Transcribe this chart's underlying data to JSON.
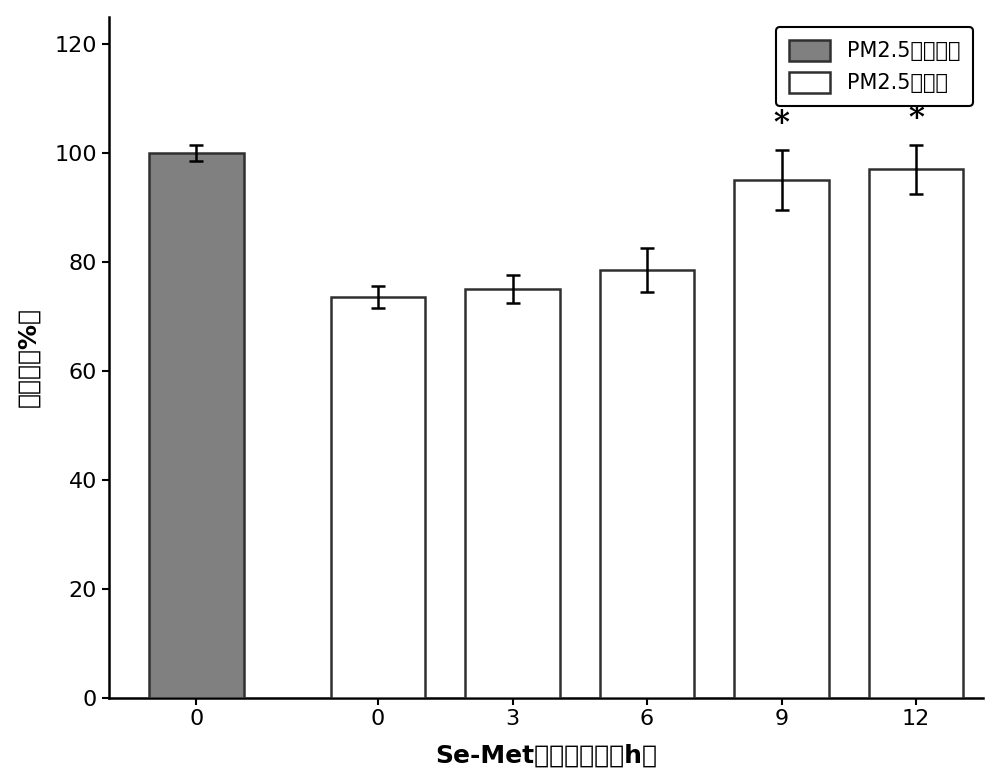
{
  "categories": [
    "0",
    "0",
    "3",
    "6",
    "9",
    "12"
  ],
  "values": [
    100,
    73.5,
    75.0,
    78.5,
    95.0,
    97.0
  ],
  "errors": [
    1.5,
    2.0,
    2.5,
    4.0,
    5.5,
    4.5
  ],
  "bar_colors": [
    "#808080",
    "#ffffff",
    "#ffffff",
    "#ffffff",
    "#ffffff",
    "#ffffff"
  ],
  "bar_edge_colors": [
    "#303030",
    "#303030",
    "#303030",
    "#303030",
    "#303030",
    "#303030"
  ],
  "xlabel": "Se-Met预处理时间（h）",
  "ylabel": "存活率（%）",
  "ylim": [
    0,
    125
  ],
  "yticks": [
    0,
    20,
    40,
    60,
    80,
    100,
    120
  ],
  "legend_labels": [
    "PM2.5未处理组",
    "PM2.5处理组"
  ],
  "legend_colors": [
    "#808080",
    "#ffffff"
  ],
  "legend_edge_colors": [
    "#303030",
    "#303030"
  ],
  "significance_indices": [
    4,
    5
  ],
  "significance_symbol": "*",
  "bar_width": 0.7,
  "axis_fontsize": 18,
  "tick_fontsize": 16,
  "legend_fontsize": 15,
  "sig_fontsize": 22,
  "background_color": "#ffffff",
  "x_positions": [
    0,
    1.35,
    2.35,
    3.35,
    4.35,
    5.35
  ]
}
